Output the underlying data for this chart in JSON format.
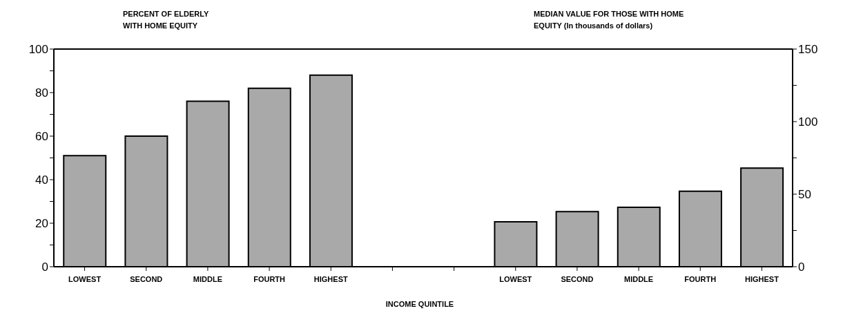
{
  "chart_data": {
    "type": "bar",
    "ylabel": "PERCENT OF ELDERLY WITH HOME EQUITY",
    "y2label": "MEDIAN VALUE FOR THOSE WITH HOME EQUITY (In thousands of dollars)",
    "xlabel": "INCOME QUINTILE",
    "categories": [
      "LOWEST",
      "SECOND",
      "MIDDLE",
      "FOURTH",
      "HIGHEST",
      null,
      null,
      "LOWEST",
      "SECOND",
      "MIDDLE",
      "FOURTH",
      "HIGHEST"
    ],
    "series": [
      {
        "color": "#a9a9a9",
        "values": [
          51,
          60,
          76,
          82,
          88,
          null,
          null,
          null,
          null,
          null,
          null,
          null
        ]
      },
      {
        "color": "#a9a9a9",
        "axis": "y2",
        "values": [
          null,
          null,
          null,
          null,
          null,
          null,
          null,
          31,
          38,
          41,
          52,
          68
        ]
      }
    ],
    "ylim": [
      0,
      100
    ],
    "yticks": [
      0,
      {
        "value": 10,
        "label": null
      },
      20,
      {
        "value": 30,
        "label": null
      },
      40,
      {
        "value": 50,
        "label": null
      },
      60,
      {
        "value": 70,
        "label": null
      },
      80,
      {
        "value": 90,
        "label": null
      },
      100
    ],
    "y2lim": [
      0,
      150
    ],
    "y2ticks": [
      0,
      {
        "value": 25,
        "label": null
      },
      50,
      {
        "value": 75,
        "label": null
      },
      100,
      {
        "value": 125,
        "label": null
      },
      150
    ]
  }
}
